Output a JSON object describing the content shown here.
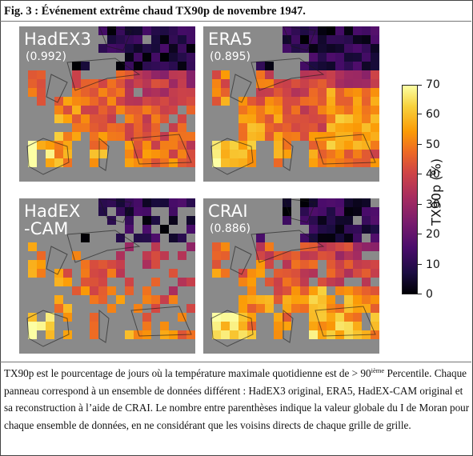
{
  "figure": {
    "title": "Fig. 3 : Événement extrême chaud TX90p de novembre 1947."
  },
  "panels": [
    {
      "name": "HadEX3",
      "value": "(0.992)"
    },
    {
      "name": "ERA5",
      "value": "(0.895)"
    },
    {
      "name": "HadEX\n-CAM",
      "value": ""
    },
    {
      "name": "CRAI",
      "value": "(0.886)"
    }
  ],
  "colorbar": {
    "label": "TX90p (%)",
    "ticks": [
      "0",
      "10",
      "20",
      "30",
      "40",
      "50",
      "60",
      "70"
    ],
    "range": [
      0,
      70
    ],
    "colormap": "magma",
    "missing_color": "#8a8a8a"
  },
  "caption": {
    "part1": "TX90p est le pourcentage de jours où la température maximale quotidienne est de > 90",
    "sup": "ième",
    "part2": " Percentile. Chaque panneau correspond à un ensemble de données différent : HadEX3 original, ERA5, HadEX-CAM original et sa reconstruction à l’aide de CRAI. Le nombre entre parenthèses indique la valeur globale du I de Moran pour chaque ensemble de données, en ne considérant que les voisins directs de chaque grille de grille."
  }
}
